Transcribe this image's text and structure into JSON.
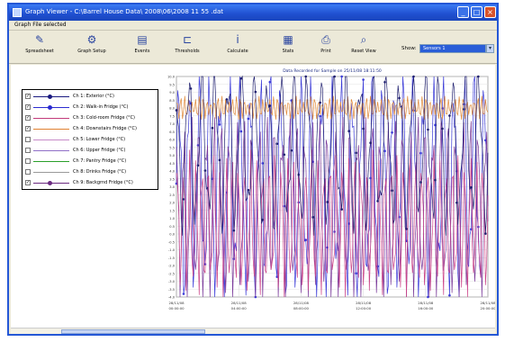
{
  "window": {
    "title": "Graph Viewer - C:\\Barrel House Data\\ 2008\\06\\2008 11 55 .dat",
    "minimize": "_",
    "maximize": "□",
    "close": "×"
  },
  "menu": {
    "label": "Graph File selected"
  },
  "toolbar": {
    "buttons": [
      {
        "label": "Spreadsheet",
        "icon": "wrench-icon",
        "glyph": "✎"
      },
      {
        "label": "Graph Setup",
        "icon": "setup-icon",
        "glyph": "⚙"
      },
      {
        "label": "Events",
        "icon": "events-icon",
        "glyph": "▤"
      },
      {
        "label": "Thresholds",
        "icon": "thresholds-icon",
        "glyph": "⊏"
      },
      {
        "label": "Calculate",
        "icon": "calculate-icon",
        "glyph": "ⅰ"
      },
      {
        "label": "Stats",
        "icon": "stats-icon",
        "glyph": "▦"
      },
      {
        "label": "Print",
        "icon": "print-icon",
        "glyph": "⎙"
      },
      {
        "label": "Reset View",
        "icon": "reset-view-icon",
        "glyph": "⌕"
      }
    ],
    "show_label": "Show:",
    "show_value": "Sensors 1"
  },
  "legend": [
    {
      "checked": true,
      "label": "Ch 1: Exterior (°C)",
      "color": "#1a1a80",
      "marker": "dot"
    },
    {
      "checked": true,
      "label": "Ch 2: Walk-in Fridge (°C)",
      "color": "#2b2bd0",
      "marker": "dot"
    },
    {
      "checked": true,
      "label": "Ch 3: Cold-room Fridge (°C)",
      "color": "#c23a7a",
      "marker": "none"
    },
    {
      "checked": true,
      "label": "Ch 4: Downstairs Fridge (°C)",
      "color": "#e08030",
      "marker": "none"
    },
    {
      "checked": false,
      "label": "Ch 5: Lower Fridge (°C)",
      "color": "#c78ac7",
      "marker": "none"
    },
    {
      "checked": false,
      "label": "Ch 6: Upper Fridge (°C)",
      "color": "#8f6fc7",
      "marker": "none"
    },
    {
      "checked": false,
      "label": "Ch 7: Pantry Fridge (°C)",
      "color": "#2aa02a",
      "marker": "none"
    },
    {
      "checked": false,
      "label": "Ch 8: Drinks Fridge (°C)",
      "color": "#9a9a9a",
      "marker": "none"
    },
    {
      "checked": true,
      "label": "Ch 9: Backgrnd Fridge (°C)",
      "color": "#6a2a80",
      "marker": "dot"
    }
  ],
  "chart_data": {
    "type": "line",
    "title": "Data Recorded for Sample on 25/11/08 18:11:50",
    "yticks": [
      "10.0",
      "9.5",
      "9.0",
      "8.5",
      "8.0",
      "7.5",
      "7.0",
      "6.5",
      "6.0",
      "5.5",
      "5.0",
      "4.5",
      "4.0",
      "3.5",
      "3.0",
      "2.5",
      "2.0",
      "1.5",
      "1.0",
      "0.5",
      "0.0",
      "-0.5",
      "-1.0",
      "-1.5",
      "-2.0",
      "-2.5",
      "-3.0",
      "-3.5",
      "-4.0"
    ],
    "ylim": [
      -4,
      10
    ],
    "xticks": [
      {
        "date": "28/11/08",
        "time": "00:00:00"
      },
      {
        "date": "28/11/08",
        "time": "04:00:00"
      },
      {
        "date": "28/11/08",
        "time": "08:00:00"
      },
      {
        "date": "28/11/08",
        "time": "12:00:00"
      },
      {
        "date": "28/11/08",
        "time": "16:00:00"
      },
      {
        "date": "28/11/08",
        "time": "20:00:00"
      }
    ],
    "grid": true,
    "series": [
      {
        "name": "Ch 2: Walk-in Fridge (°C)",
        "color": "#3a3ad8",
        "marker": "dot",
        "period": 8.5,
        "amp": 5.8,
        "center": 3.2,
        "phase": 0.0
      },
      {
        "name": "Ch 9: Backgrnd Fridge (°C)",
        "color": "#7a3a9a",
        "marker": "none",
        "period": 6.3,
        "amp": 4.8,
        "center": 1.6,
        "phase": 1.6
      },
      {
        "name": "Ch 3: Cold-room Fridge (°C)",
        "color": "#cc4488",
        "marker": "none",
        "period": 5.1,
        "amp": 3.6,
        "center": 0.6,
        "phase": 0.6
      },
      {
        "name": "Ch 4: Downstairs Fridge (°C)",
        "color": "#e08a3a",
        "marker": "none",
        "period": 3.1,
        "amp": 0.6,
        "center": 8.0,
        "phase": 0.3
      },
      {
        "name": "Ch 1: Exterior (°C)",
        "color": "#202070",
        "marker": "dot",
        "period": 11.0,
        "amp": 4.2,
        "center": 5.5,
        "phase": 2.0
      }
    ]
  }
}
